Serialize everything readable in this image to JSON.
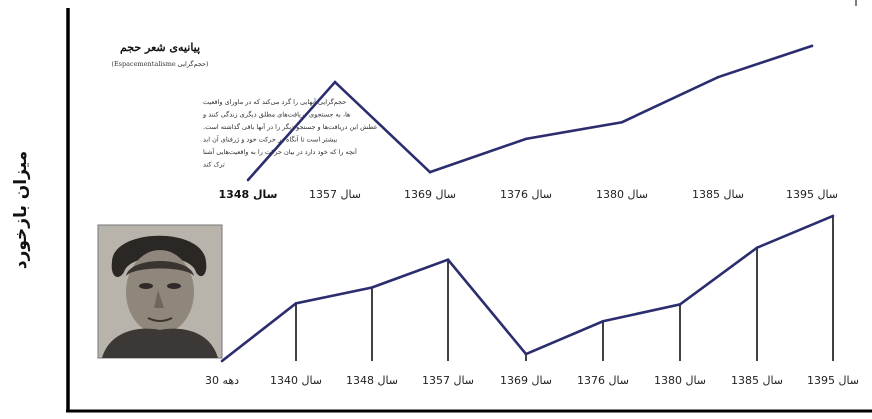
{
  "y_axis_label": "میزان بازخورد",
  "poem_card": {
    "title": "پیانیه‌ی شعر حجم",
    "subtitle": "(حجم‌گرایی Espacementalisme)",
    "body_lines": [
      "حجم‌گرایی آنهایی را گرد می‌کند که در ماورای واقعیت",
      "ها، به جستجوی دریافت‌های مطلق دیگری زندگی کنند و",
      "عطش این دریافت‌ها و جستجو دیگر را در آنها باقی گذاشته‌ است.",
      "بیشتر است تا آنگاه در حرکت خود و ژرفنای آن ابد",
      "آنچه را که خود دارد در بیان حرکت را به واقعیت‌هایی آشنا",
      "ترک کند"
    ]
  },
  "portrait": {
    "kind": "black-and-white photograph of a man"
  },
  "colors": {
    "line": "#2b2d6e",
    "axis": "#111111",
    "frame": "#000000"
  },
  "chart_data": [
    {
      "type": "line",
      "categories": [
        "سال 1348",
        "سال 1357",
        "سال 1369",
        "سال 1376",
        "سال 1380",
        "سال 1385",
        "سال 1395"
      ],
      "values": [
        0,
        100,
        8,
        42,
        59,
        105,
        137
      ],
      "ylim": [
        0,
        145
      ]
    },
    {
      "type": "line",
      "categories": [
        "دهه 30",
        "سال 1340",
        "سال 1348",
        "سال 1357",
        "سال 1369",
        "سال 1376",
        "سال 1380",
        "سال 1385",
        "سال 1395"
      ],
      "values": [
        0,
        58,
        74,
        102,
        7,
        40,
        57,
        114,
        146
      ],
      "ylim": [
        0,
        155
      ],
      "drop_lines": true
    }
  ]
}
